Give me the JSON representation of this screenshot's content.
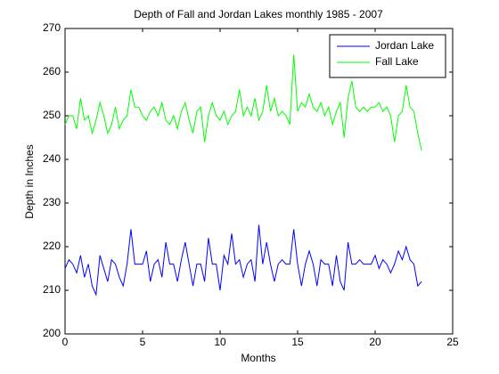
{
  "chart_data": {
    "type": "line",
    "title": "Depth of Fall and Jordan Lakes monthly 1985 - 2007",
    "x_label": "Months",
    "y_label": "Depth in Inches",
    "x": [
      0,
      0.25,
      0.5,
      0.75,
      1,
      1.25,
      1.5,
      1.75,
      2,
      2.25,
      2.5,
      2.75,
      3,
      3.25,
      3.5,
      3.75,
      4,
      4.25,
      4.5,
      4.75,
      5,
      5.25,
      5.5,
      5.75,
      6,
      6.25,
      6.5,
      6.75,
      7,
      7.25,
      7.5,
      7.75,
      8,
      8.25,
      8.5,
      8.75,
      9,
      9.25,
      9.5,
      9.75,
      10,
      10.25,
      10.5,
      10.75,
      11,
      11.25,
      11.5,
      11.75,
      12,
      12.25,
      12.5,
      12.75,
      13,
      13.25,
      13.5,
      13.75,
      14,
      14.25,
      14.5,
      14.75,
      15,
      15.25,
      15.5,
      15.75,
      16,
      16.25,
      16.5,
      16.75,
      17,
      17.25,
      17.5,
      17.75,
      18,
      18.25,
      18.5,
      18.75,
      19,
      19.25,
      19.5,
      19.75,
      20,
      20.25,
      20.5,
      20.75,
      21,
      21.25,
      21.5,
      21.75,
      22,
      22.25,
      22.5,
      22.75,
      23
    ],
    "series": [
      {
        "name": "Jordan Lake",
        "color": "#0000ff",
        "values": [
          215,
          217,
          216,
          214,
          218,
          213,
          216,
          211,
          209,
          218,
          215,
          212,
          217,
          216,
          213,
          211,
          216,
          224,
          216,
          216,
          216,
          219,
          212,
          216,
          217,
          213,
          221,
          216,
          216,
          212,
          217,
          221,
          216,
          211,
          216,
          216,
          212,
          222,
          216,
          216,
          210,
          218,
          216,
          223,
          216,
          217,
          213,
          216,
          217,
          212,
          225,
          216,
          221,
          216,
          212,
          216,
          217,
          216,
          216,
          224,
          216,
          211,
          216,
          219,
          216,
          211,
          217,
          216,
          216,
          211,
          218,
          212,
          210,
          221,
          216,
          216,
          217,
          216,
          216,
          216,
          218,
          215,
          217,
          216,
          214,
          216,
          219,
          217,
          220,
          217,
          216,
          211,
          212
        ]
      },
      {
        "name": "Fall Lake",
        "color": "#00ff00",
        "values": [
          248,
          250,
          250,
          247,
          254,
          249,
          250,
          246,
          249,
          253,
          250,
          246,
          248,
          252,
          247,
          249,
          250,
          256,
          252,
          252,
          250,
          249,
          251,
          252,
          250,
          253,
          249,
          248,
          250,
          247,
          251,
          253,
          249,
          246,
          251,
          252,
          244,
          250,
          253,
          250,
          249,
          251,
          248,
          250,
          251,
          256,
          250,
          252,
          250,
          254,
          249,
          251,
          257,
          251,
          254,
          250,
          251,
          250,
          248,
          264,
          251,
          253,
          252,
          255,
          252,
          251,
          253,
          250,
          252,
          248,
          251,
          253,
          245,
          254,
          258,
          252,
          251,
          252,
          251,
          252,
          252,
          253,
          251,
          252,
          250,
          244,
          250,
          251,
          257,
          252,
          251,
          246,
          242
        ]
      }
    ],
    "xlim": [
      0,
      25
    ],
    "xticks": [
      0,
      5,
      10,
      15,
      20,
      25
    ],
    "ylim": [
      200,
      270
    ],
    "yticks": [
      200,
      210,
      220,
      230,
      240,
      250,
      260,
      270
    ],
    "grid": false,
    "legend": "northeast"
  }
}
